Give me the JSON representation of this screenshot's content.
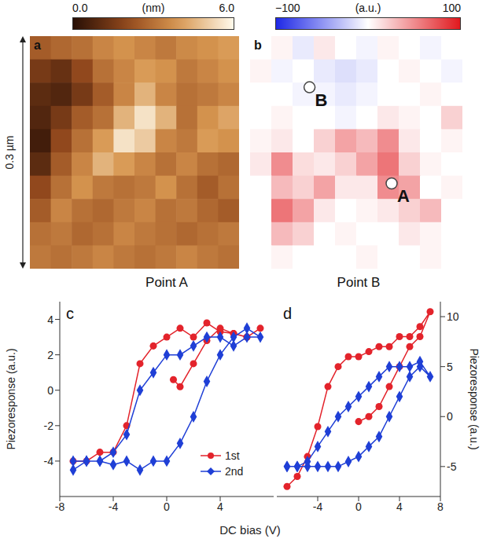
{
  "chart_data": [
    {
      "type": "heatmap",
      "panel": "a",
      "size": 0.3,
      "scale_label": "0.3 µm",
      "colorbar": {
        "range": [
          0,
          6
        ],
        "ticks": [
          {
            "value": 0,
            "label": "0.0"
          },
          {
            "value": 6,
            "label": "6.0"
          }
        ],
        "label": "(nm)"
      },
      "cells": [
        [
          2.5,
          2.8,
          3.0,
          3.5,
          3.8,
          3.5,
          3.2,
          3.6,
          3.8,
          4.0
        ],
        [
          1.5,
          1.2,
          2.0,
          3.0,
          3.5,
          4.0,
          3.8,
          3.2,
          3.5,
          3.8
        ],
        [
          1.0,
          0.8,
          1.5,
          2.5,
          3.5,
          4.5,
          3.5,
          3.0,
          3.2,
          3.5
        ],
        [
          0.8,
          1.5,
          2.5,
          3.0,
          4.5,
          5.5,
          4.5,
          3.0,
          3.8,
          4.2
        ],
        [
          0.5,
          2.0,
          3.0,
          4.0,
          5.5,
          5.0,
          3.5,
          3.2,
          4.0,
          3.8
        ],
        [
          1.0,
          2.5,
          3.5,
          4.5,
          4.0,
          3.5,
          3.0,
          3.5,
          3.0,
          2.8
        ],
        [
          2.0,
          3.0,
          3.8,
          3.2,
          3.0,
          3.2,
          3.8,
          3.0,
          2.5,
          3.0
        ],
        [
          2.5,
          3.5,
          3.0,
          2.8,
          3.2,
          3.5,
          3.0,
          3.2,
          2.8,
          2.5
        ],
        [
          3.0,
          3.2,
          2.8,
          3.0,
          3.5,
          3.2,
          3.0,
          2.8,
          3.0,
          3.2
        ],
        [
          3.2,
          3.0,
          3.2,
          3.5,
          3.2,
          3.0,
          3.2,
          3.5,
          3.2,
          3.0
        ]
      ]
    },
    {
      "type": "heatmap",
      "panel": "b",
      "size": 0.3,
      "colorbar": {
        "range": [
          -100,
          100
        ],
        "ticks": [
          {
            "value": -100,
            "label": "−100"
          },
          100
        ],
        "label": "(a.u.)"
      },
      "points": [
        {
          "label": "A",
          "x": 0.2,
          "y": 0.19
        },
        {
          "label": "B",
          "x": 0.084,
          "y": 0.066
        }
      ],
      "cells": [
        [
          0,
          5,
          -10,
          10,
          0,
          -5,
          5,
          0,
          -5,
          0
        ],
        [
          5,
          -5,
          0,
          -10,
          -15,
          -10,
          0,
          5,
          0,
          -5
        ],
        [
          0,
          0,
          -5,
          -5,
          -10,
          -5,
          0,
          0,
          5,
          0
        ],
        [
          0,
          5,
          0,
          0,
          -5,
          0,
          10,
          5,
          0,
          20
        ],
        [
          5,
          10,
          0,
          20,
          40,
          30,
          50,
          10,
          0,
          5
        ],
        [
          10,
          50,
          15,
          10,
          20,
          40,
          60,
          20,
          5,
          0
        ],
        [
          0,
          30,
          20,
          40,
          10,
          10,
          50,
          40,
          0,
          5
        ],
        [
          0,
          60,
          40,
          10,
          0,
          5,
          10,
          20,
          30,
          0
        ],
        [
          0,
          30,
          20,
          0,
          5,
          0,
          0,
          10,
          5,
          0
        ],
        [
          0,
          5,
          0,
          0,
          0,
          5,
          0,
          0,
          5,
          0
        ]
      ]
    },
    {
      "type": "line",
      "panel": "c",
      "title": "Point A",
      "xlabel": "DC bias (V)",
      "ylabel": "Piezoresponse (a.u.)",
      "xlim": [
        -8,
        8
      ],
      "xticks": [
        -8,
        -4,
        0,
        4
      ],
      "ylim": [
        -6,
        5
      ],
      "yticks": [
        -4,
        -2,
        0,
        2,
        4
      ],
      "legend": "lower right",
      "series": [
        {
          "name": "1st",
          "color": "#e3232b",
          "marker": "circle",
          "x": [
            0.5,
            1,
            2,
            3,
            4,
            5,
            6,
            7,
            6,
            5,
            4,
            3,
            2,
            1,
            0,
            -1,
            -2,
            -3,
            -4,
            -5,
            -6,
            -7
          ],
          "values": [
            0.6,
            0.2,
            1.5,
            2.8,
            3.5,
            3.2,
            3.0,
            3.5,
            3.0,
            3.2,
            3.3,
            3.8,
            3.0,
            3.5,
            3.0,
            2.5,
            1.5,
            -2.0,
            -3.5,
            -3.5,
            -4.0,
            -4.0
          ]
        },
        {
          "name": "2nd",
          "color": "#1f3fd6",
          "marker": "diamond",
          "x": [
            -7,
            -6,
            -5,
            -4,
            -3,
            -2,
            -1,
            0,
            1,
            2,
            3,
            4,
            5,
            6,
            7,
            6,
            5,
            4,
            3,
            2,
            1,
            0,
            -1,
            -2,
            -3,
            -4,
            -5,
            -6,
            -7
          ],
          "values": [
            -4.5,
            -4.0,
            -4.0,
            -4.2,
            -4.0,
            -4.5,
            -4.0,
            -4.0,
            -3.0,
            -1.5,
            0.5,
            2.0,
            3.0,
            3.5,
            3.0,
            3.0,
            2.5,
            3.0,
            3.0,
            2.5,
            2.0,
            2.0,
            1.0,
            0.0,
            -2.5,
            -3.5,
            -4.0,
            -4.0,
            -4.0
          ]
        }
      ]
    },
    {
      "type": "line",
      "panel": "d",
      "title": "Point B",
      "ylabel": "Piezoresponse (a.u.)",
      "xlim": [
        -8,
        8
      ],
      "xticks": [
        -4,
        0,
        4,
        8
      ],
      "ylim": [
        -8,
        11.5
      ],
      "yticks": [
        -5,
        0,
        5,
        10
      ],
      "series": [
        {
          "name": "1st",
          "color": "#e3232b",
          "marker": "circle",
          "x": [
            0,
            1,
            2,
            3,
            4,
            5,
            6,
            7,
            6,
            5,
            4,
            3,
            2,
            1,
            0,
            -1,
            -2,
            -3,
            -4,
            -5,
            -6,
            -7
          ],
          "values": [
            -0.5,
            0,
            1,
            3,
            5,
            7,
            8,
            10.5,
            9,
            8,
            8,
            7,
            7,
            6.5,
            6,
            6,
            5,
            3,
            -1,
            -4,
            -6,
            -7
          ]
        },
        {
          "name": "2nd",
          "color": "#1f3fd6",
          "marker": "diamond",
          "x": [
            -7,
            -6,
            -5,
            -4,
            -3,
            -2,
            -1,
            0,
            1,
            2,
            3,
            4,
            5,
            6,
            7,
            6,
            5,
            4,
            3,
            2,
            1,
            0,
            -1,
            -2,
            -3,
            -4,
            -5,
            -6,
            -7
          ],
          "values": [
            -5,
            -5,
            -5,
            -5,
            -5,
            -5,
            -4.5,
            -4,
            -3,
            -2,
            0,
            2,
            4,
            5,
            4,
            5.5,
            5,
            5,
            5,
            4,
            3,
            2,
            1,
            0,
            -1.5,
            -3,
            -4.5,
            -5,
            -5
          ]
        }
      ]
    }
  ]
}
